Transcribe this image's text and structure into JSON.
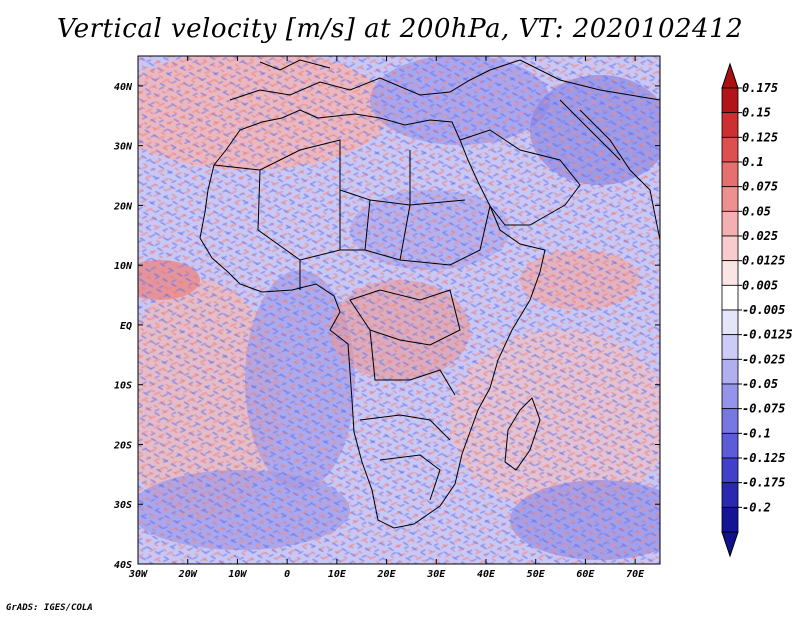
{
  "title": "Vertical velocity [m/s] at 200hPa, VT: 2020102412",
  "footer": "GrADS: IGES/COLA",
  "map": {
    "region": "Africa",
    "lat_labels": [
      "40N",
      "30N",
      "20N",
      "10N",
      "EQ",
      "10S",
      "20S",
      "30S",
      "40S"
    ],
    "lat_values": [
      40,
      30,
      20,
      10,
      0,
      -10,
      -20,
      -30,
      -40
    ],
    "lon_labels": [
      "30W",
      "20W",
      "10W",
      "0",
      "10E",
      "20E",
      "30E",
      "40E",
      "50E",
      "60E",
      "70E"
    ],
    "lon_values": [
      -30,
      -20,
      -10,
      0,
      10,
      20,
      30,
      40,
      50,
      60,
      70
    ],
    "lon_range": [
      -30,
      75
    ],
    "lat_range": [
      -40,
      45
    ]
  },
  "colorbar": {
    "labels": [
      "0.175",
      "0.15",
      "0.125",
      "0.1",
      "0.075",
      "0.05",
      "0.025",
      "0.0125",
      "0.005",
      "-0.005",
      "-0.0125",
      "-0.025",
      "-0.05",
      "-0.075",
      "-0.1",
      "-0.125",
      "-0.175",
      "-0.2"
    ],
    "colors": [
      "#b2141c",
      "#cc3030",
      "#dd5050",
      "#e67070",
      "#ee9090",
      "#f4b0b0",
      "#f8cccc",
      "#fbe4e4",
      "#ffffff",
      "#e4e4fb",
      "#ccccf6",
      "#b0b0f0",
      "#9494ea",
      "#7878e2",
      "#5c5cd8",
      "#4040c8",
      "#2828b0",
      "#141496"
    ],
    "top_color": "#aa1010",
    "bottom_color": "#101090"
  },
  "colors": {
    "neg": "#8a8aee",
    "pos": "#ee8a8a",
    "coast": "#000000"
  }
}
